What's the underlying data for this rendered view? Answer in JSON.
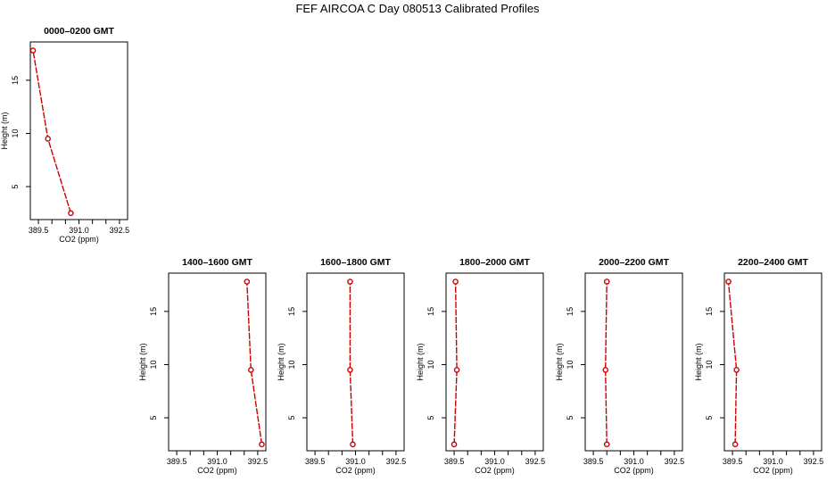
{
  "figure": {
    "title": "FEF AIRCOA C  Day 080513  Calibrated Profiles"
  },
  "chart_data": [
    {
      "type": "line",
      "title": "0000–0200 GMT",
      "xlabel": "CO2 (ppm)",
      "ylabel": "Height (m)",
      "xlim": [
        389.2,
        392.8
      ],
      "ylim": [
        1.9,
        18.6
      ],
      "xticks": [
        389.5,
        391.0,
        392.5
      ],
      "xtick_labels": [
        "389.5",
        "391.0",
        "392.5"
      ],
      "xminor": [
        390.0,
        390.5,
        391.5,
        392.0
      ],
      "yticks": [
        5,
        10,
        15
      ],
      "ytick_labels": [
        "5",
        "10",
        "15"
      ],
      "series": [
        {
          "x": [
            390.7,
            389.85,
            389.3
          ],
          "y": [
            2.5,
            9.5,
            17.8
          ],
          "color": "#cc0000"
        }
      ],
      "grid": false
    },
    {
      "type": "line",
      "title": "1400–1600 GMT",
      "xlabel": "CO2 (ppm)",
      "ylabel": "Height (m)",
      "xlim": [
        389.2,
        392.8
      ],
      "ylim": [
        1.9,
        18.6
      ],
      "xticks": [
        389.5,
        391.0,
        392.5
      ],
      "xtick_labels": [
        "389.5",
        "391.0",
        "392.5"
      ],
      "xminor": [
        390.0,
        390.5,
        391.5,
        392.0
      ],
      "yticks": [
        5,
        10,
        15
      ],
      "ytick_labels": [
        "5",
        "10",
        "15"
      ],
      "series": [
        {
          "x": [
            392.65,
            392.25,
            392.1
          ],
          "y": [
            2.5,
            9.5,
            17.8
          ],
          "color": "#cc0000"
        }
      ],
      "grid": false
    },
    {
      "type": "line",
      "title": "1600–1800 GMT",
      "xlabel": "CO2 (ppm)",
      "ylabel": "Height (m)",
      "xlim": [
        389.2,
        392.8
      ],
      "ylim": [
        1.9,
        18.6
      ],
      "xticks": [
        389.5,
        391.0,
        392.5
      ],
      "xtick_labels": [
        "389.5",
        "391.0",
        "392.5"
      ],
      "xminor": [
        390.0,
        390.5,
        391.5,
        392.0
      ],
      "yticks": [
        5,
        10,
        15
      ],
      "ytick_labels": [
        "5",
        "10",
        "15"
      ],
      "series": [
        {
          "x": [
            390.9,
            390.8,
            390.8
          ],
          "y": [
            2.5,
            9.5,
            17.8
          ],
          "color": "#cc0000"
        }
      ],
      "grid": false
    },
    {
      "type": "line",
      "title": "1800–2000 GMT",
      "xlabel": "CO2 (ppm)",
      "ylabel": "Height (m)",
      "xlim": [
        389.2,
        392.8
      ],
      "ylim": [
        1.9,
        18.6
      ],
      "xticks": [
        389.5,
        391.0,
        392.5
      ],
      "xtick_labels": [
        "389.5",
        "391.0",
        "392.5"
      ],
      "xminor": [
        390.0,
        390.5,
        391.5,
        392.0
      ],
      "yticks": [
        5,
        10,
        15
      ],
      "ytick_labels": [
        "5",
        "10",
        "15"
      ],
      "series": [
        {
          "x": [
            389.5,
            389.6,
            389.55
          ],
          "y": [
            2.5,
            9.5,
            17.8
          ],
          "color": "#cc0000"
        }
      ],
      "grid": false
    },
    {
      "type": "line",
      "title": "2000–2200 GMT",
      "xlabel": "CO2 (ppm)",
      "ylabel": "Height (m)",
      "xlim": [
        389.2,
        392.8
      ],
      "ylim": [
        1.9,
        18.6
      ],
      "xticks": [
        389.5,
        391.0,
        392.5
      ],
      "xtick_labels": [
        "389.5",
        "391.0",
        "392.5"
      ],
      "xminor": [
        390.0,
        390.5,
        391.5,
        392.0
      ],
      "yticks": [
        5,
        10,
        15
      ],
      "ytick_labels": [
        "5",
        "10",
        "15"
      ],
      "series": [
        {
          "x": [
            390.0,
            389.95,
            390.0
          ],
          "y": [
            2.5,
            9.5,
            17.8
          ],
          "color": "#cc0000"
        }
      ],
      "grid": false
    },
    {
      "type": "line",
      "title": "2200–2400 GMT",
      "xlabel": "CO2 (ppm)",
      "ylabel": "Height (m)",
      "xlim": [
        389.2,
        392.8
      ],
      "ylim": [
        1.9,
        18.6
      ],
      "xticks": [
        389.5,
        391.0,
        392.5
      ],
      "xtick_labels": [
        "389.5",
        "391.0",
        "392.5"
      ],
      "xminor": [
        390.0,
        390.5,
        391.5,
        392.0
      ],
      "yticks": [
        5,
        10,
        15
      ],
      "ytick_labels": [
        "5",
        "10",
        "15"
      ],
      "series": [
        {
          "x": [
            389.6,
            389.65,
            389.35
          ],
          "y": [
            2.5,
            9.5,
            17.8
          ],
          "color": "#cc0000"
        }
      ],
      "grid": false
    }
  ]
}
